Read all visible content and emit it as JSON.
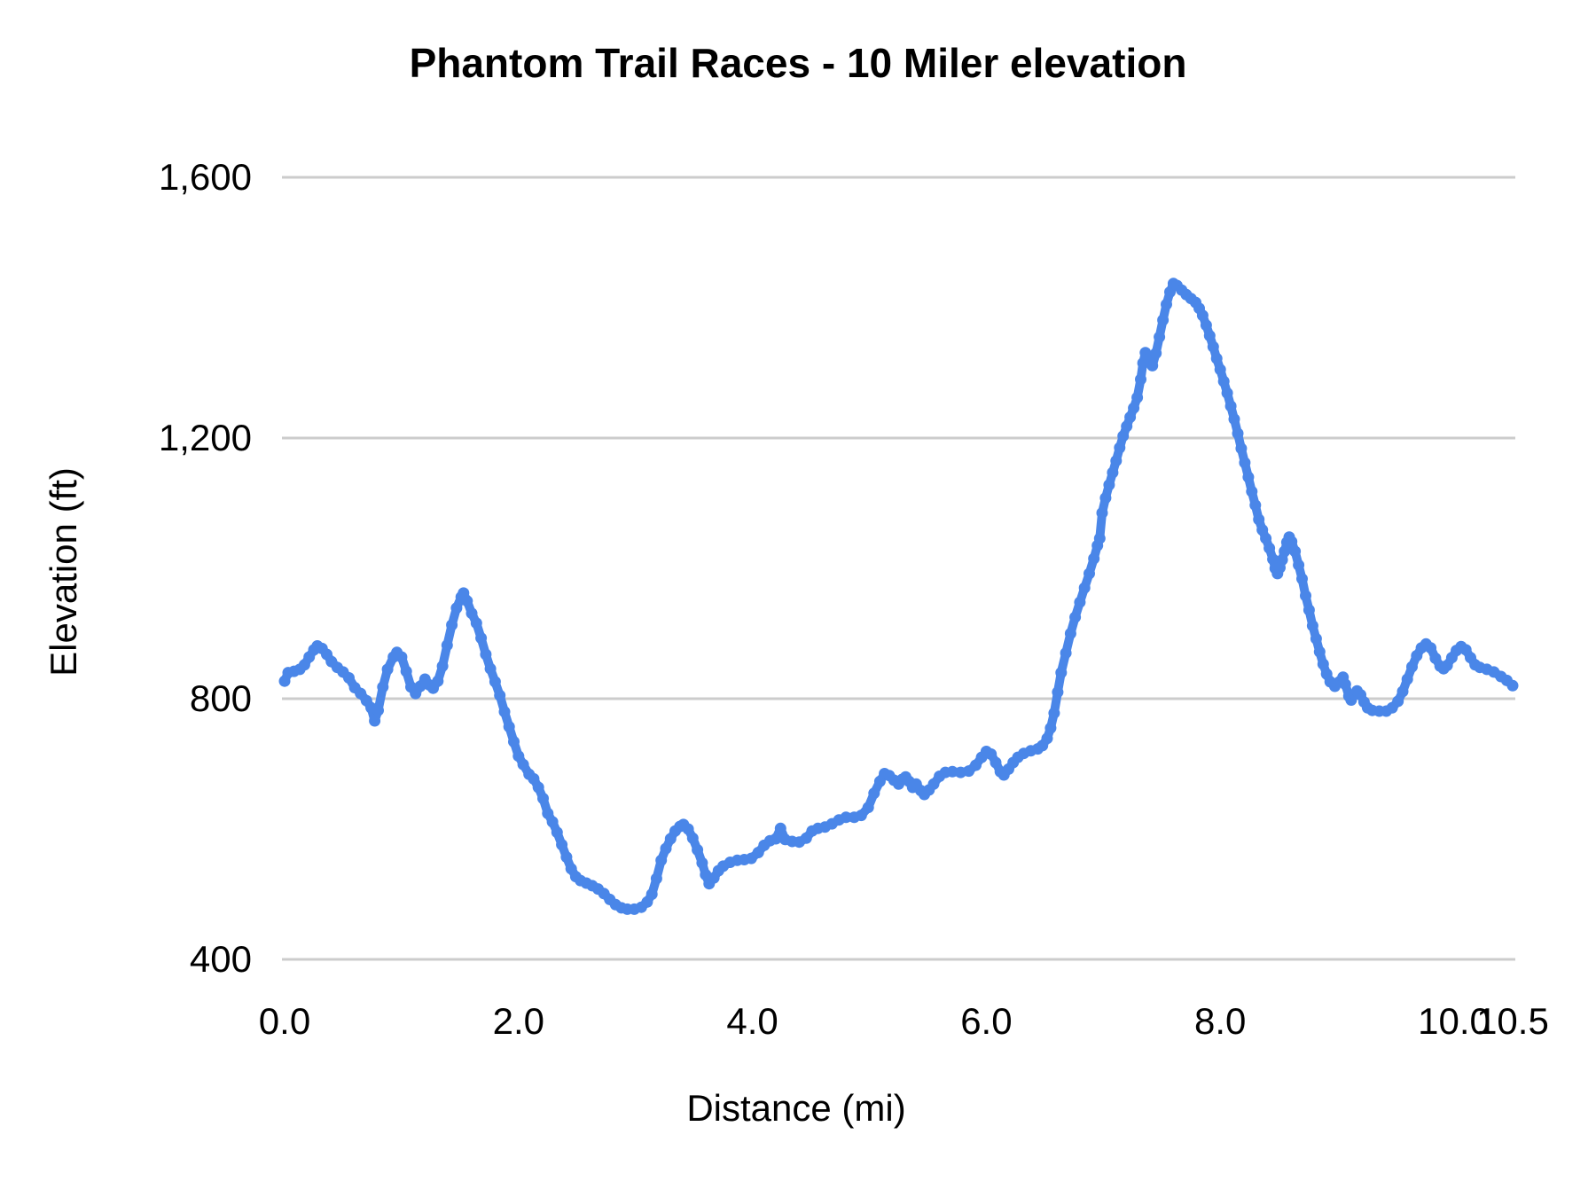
{
  "colors": {
    "line": "#4a86e8",
    "gridline": "#cccccc",
    "text": "#000000",
    "background": "#ffffff"
  },
  "chart_data": {
    "type": "line",
    "title": "Phantom Trail Races - 10 Miler elevation",
    "xlabel": "Distance (mi)",
    "ylabel": "Elevation (ft)",
    "legend": "none",
    "grid": "horizontal",
    "xlim": [
      0,
      10.53
    ],
    "ylim": [
      400,
      1600
    ],
    "x_ticks": [
      {
        "label": "0.0",
        "value": 0
      },
      {
        "label": "2.0",
        "value": 2
      },
      {
        "label": "4.0",
        "value": 4
      },
      {
        "label": "6.0",
        "value": 6
      },
      {
        "label": "8.0",
        "value": 8
      },
      {
        "label": "10.0",
        "value": 10
      },
      {
        "label": "10.5",
        "value": 10.5
      }
    ],
    "y_ticks": [
      {
        "label": "400",
        "value": 400
      },
      {
        "label": "800",
        "value": 800
      },
      {
        "label": "1,200",
        "value": 1200
      },
      {
        "label": "1,600",
        "value": 1600
      }
    ],
    "series": [
      {
        "name": "Elevation",
        "marker": "point",
        "points": [
          [
            0.0,
            827
          ],
          [
            0.03,
            840
          ],
          [
            0.08,
            842
          ],
          [
            0.13,
            845
          ],
          [
            0.17,
            852
          ],
          [
            0.21,
            864
          ],
          [
            0.25,
            875
          ],
          [
            0.28,
            881
          ],
          [
            0.32,
            877
          ],
          [
            0.36,
            868
          ],
          [
            0.4,
            857
          ],
          [
            0.45,
            848
          ],
          [
            0.5,
            841
          ],
          [
            0.55,
            832
          ],
          [
            0.6,
            817
          ],
          [
            0.65,
            808
          ],
          [
            0.7,
            797
          ],
          [
            0.74,
            786
          ],
          [
            0.77,
            766
          ],
          [
            0.8,
            782
          ],
          [
            0.84,
            818
          ],
          [
            0.88,
            845
          ],
          [
            0.93,
            864
          ],
          [
            0.96,
            871
          ],
          [
            1.0,
            864
          ],
          [
            1.04,
            842
          ],
          [
            1.08,
            818
          ],
          [
            1.12,
            808
          ],
          [
            1.16,
            819
          ],
          [
            1.2,
            830
          ],
          [
            1.24,
            821
          ],
          [
            1.27,
            816
          ],
          [
            1.31,
            827
          ],
          [
            1.35,
            850
          ],
          [
            1.39,
            882
          ],
          [
            1.43,
            913
          ],
          [
            1.47,
            939
          ],
          [
            1.51,
            956
          ],
          [
            1.53,
            962
          ],
          [
            1.56,
            950
          ],
          [
            1.6,
            931
          ],
          [
            1.64,
            916
          ],
          [
            1.68,
            893
          ],
          [
            1.72,
            868
          ],
          [
            1.76,
            846
          ],
          [
            1.8,
            826
          ],
          [
            1.84,
            805
          ],
          [
            1.88,
            780
          ],
          [
            1.92,
            757
          ],
          [
            1.96,
            734
          ],
          [
            2.0,
            712
          ],
          [
            2.04,
            699
          ],
          [
            2.09,
            684
          ],
          [
            2.13,
            677
          ],
          [
            2.17,
            664
          ],
          [
            2.21,
            647
          ],
          [
            2.25,
            624
          ],
          [
            2.29,
            611
          ],
          [
            2.33,
            595
          ],
          [
            2.37,
            576
          ],
          [
            2.41,
            557
          ],
          [
            2.45,
            539
          ],
          [
            2.49,
            527
          ],
          [
            2.53,
            521
          ],
          [
            2.58,
            517
          ],
          [
            2.63,
            513
          ],
          [
            2.68,
            508
          ],
          [
            2.73,
            501
          ],
          [
            2.78,
            492
          ],
          [
            2.83,
            484
          ],
          [
            2.88,
            479
          ],
          [
            2.93,
            477
          ],
          [
            2.99,
            477
          ],
          [
            3.05,
            480
          ],
          [
            3.1,
            488
          ],
          [
            3.14,
            500
          ],
          [
            3.18,
            524
          ],
          [
            3.22,
            552
          ],
          [
            3.26,
            570
          ],
          [
            3.3,
            585
          ],
          [
            3.34,
            597
          ],
          [
            3.38,
            604
          ],
          [
            3.41,
            607
          ],
          [
            3.45,
            600
          ],
          [
            3.49,
            586
          ],
          [
            3.53,
            568
          ],
          [
            3.57,
            548
          ],
          [
            3.6,
            530
          ],
          [
            3.63,
            516
          ],
          [
            3.67,
            525
          ],
          [
            3.71,
            536
          ],
          [
            3.75,
            543
          ],
          [
            3.81,
            549
          ],
          [
            3.87,
            552
          ],
          [
            3.93,
            553
          ],
          [
            3.99,
            555
          ],
          [
            4.05,
            564
          ],
          [
            4.1,
            575
          ],
          [
            4.15,
            582
          ],
          [
            4.2,
            585
          ],
          [
            4.24,
            601
          ],
          [
            4.28,
            584
          ],
          [
            4.34,
            581
          ],
          [
            4.4,
            580
          ],
          [
            4.46,
            586
          ],
          [
            4.51,
            597
          ],
          [
            4.56,
            601
          ],
          [
            4.62,
            603
          ],
          [
            4.68,
            608
          ],
          [
            4.74,
            614
          ],
          [
            4.8,
            618
          ],
          [
            4.87,
            618
          ],
          [
            4.93,
            621
          ],
          [
            4.99,
            633
          ],
          [
            5.04,
            655
          ],
          [
            5.09,
            673
          ],
          [
            5.13,
            685
          ],
          [
            5.17,
            682
          ],
          [
            5.21,
            675
          ],
          [
            5.25,
            669
          ],
          [
            5.28,
            676
          ],
          [
            5.31,
            680
          ],
          [
            5.34,
            673
          ],
          [
            5.37,
            664
          ],
          [
            5.4,
            669
          ],
          [
            5.44,
            659
          ],
          [
            5.47,
            653
          ],
          [
            5.51,
            660
          ],
          [
            5.55,
            669
          ],
          [
            5.6,
            681
          ],
          [
            5.65,
            687
          ],
          [
            5.71,
            688
          ],
          [
            5.78,
            687
          ],
          [
            5.85,
            689
          ],
          [
            5.91,
            698
          ],
          [
            5.96,
            710
          ],
          [
            6.0,
            719
          ],
          [
            6.04,
            715
          ],
          [
            6.08,
            702
          ],
          [
            6.12,
            688
          ],
          [
            6.15,
            683
          ],
          [
            6.19,
            692
          ],
          [
            6.23,
            702
          ],
          [
            6.27,
            710
          ],
          [
            6.32,
            716
          ],
          [
            6.38,
            720
          ],
          [
            6.44,
            723
          ],
          [
            6.48,
            728
          ],
          [
            6.52,
            739
          ],
          [
            6.55,
            755
          ],
          [
            6.58,
            778
          ],
          [
            6.61,
            810
          ],
          [
            6.64,
            840
          ],
          [
            6.68,
            870
          ],
          [
            6.72,
            900
          ],
          [
            6.76,
            925
          ],
          [
            6.8,
            948
          ],
          [
            6.84,
            970
          ],
          [
            6.88,
            992
          ],
          [
            6.92,
            1015
          ],
          [
            6.95,
            1035
          ],
          [
            6.97,
            1046
          ],
          [
            6.99,
            1085
          ],
          [
            7.02,
            1108
          ],
          [
            7.05,
            1128
          ],
          [
            7.08,
            1147
          ],
          [
            7.11,
            1165
          ],
          [
            7.14,
            1185
          ],
          [
            7.17,
            1203
          ],
          [
            7.2,
            1218
          ],
          [
            7.23,
            1232
          ],
          [
            7.26,
            1246
          ],
          [
            7.29,
            1262
          ],
          [
            7.32,
            1290
          ],
          [
            7.34,
            1315
          ],
          [
            7.36,
            1331
          ],
          [
            7.39,
            1322
          ],
          [
            7.42,
            1311
          ],
          [
            7.45,
            1330
          ],
          [
            7.48,
            1355
          ],
          [
            7.51,
            1381
          ],
          [
            7.54,
            1405
          ],
          [
            7.57,
            1424
          ],
          [
            7.6,
            1437
          ],
          [
            7.63,
            1434
          ],
          [
            7.67,
            1427
          ],
          [
            7.71,
            1420
          ],
          [
            7.75,
            1414
          ],
          [
            7.79,
            1408
          ],
          [
            7.82,
            1399
          ],
          [
            7.85,
            1388
          ],
          [
            7.88,
            1373
          ],
          [
            7.91,
            1357
          ],
          [
            7.94,
            1340
          ],
          [
            7.97,
            1322
          ],
          [
            8.0,
            1305
          ],
          [
            8.03,
            1287
          ],
          [
            8.06,
            1269
          ],
          [
            8.09,
            1249
          ],
          [
            8.12,
            1229
          ],
          [
            8.15,
            1207
          ],
          [
            8.18,
            1184
          ],
          [
            8.21,
            1162
          ],
          [
            8.24,
            1140
          ],
          [
            8.27,
            1118
          ],
          [
            8.3,
            1097
          ],
          [
            8.33,
            1075
          ],
          [
            8.36,
            1059
          ],
          [
            8.39,
            1046
          ],
          [
            8.42,
            1031
          ],
          [
            8.45,
            1014
          ],
          [
            8.47,
            1000
          ],
          [
            8.49,
            992
          ],
          [
            8.51,
            1001
          ],
          [
            8.53,
            1013
          ],
          [
            8.55,
            1026
          ],
          [
            8.57,
            1040
          ],
          [
            8.59,
            1048
          ],
          [
            8.61,
            1041
          ],
          [
            8.64,
            1026
          ],
          [
            8.67,
            1005
          ],
          [
            8.7,
            984
          ],
          [
            8.73,
            958
          ],
          [
            8.76,
            936
          ],
          [
            8.79,
            912
          ],
          [
            8.82,
            892
          ],
          [
            8.85,
            872
          ],
          [
            8.88,
            853
          ],
          [
            8.91,
            838
          ],
          [
            8.94,
            826
          ],
          [
            8.98,
            819
          ],
          [
            9.02,
            826
          ],
          [
            9.05,
            833
          ],
          [
            9.07,
            822
          ],
          [
            9.1,
            804
          ],
          [
            9.12,
            798
          ],
          [
            9.15,
            807
          ],
          [
            9.17,
            812
          ],
          [
            9.2,
            806
          ],
          [
            9.23,
            795
          ],
          [
            9.26,
            786
          ],
          [
            9.3,
            782
          ],
          [
            9.36,
            781
          ],
          [
            9.42,
            781
          ],
          [
            9.47,
            786
          ],
          [
            9.52,
            796
          ],
          [
            9.56,
            811
          ],
          [
            9.6,
            830
          ],
          [
            9.64,
            849
          ],
          [
            9.68,
            866
          ],
          [
            9.72,
            878
          ],
          [
            9.76,
            884
          ],
          [
            9.8,
            878
          ],
          [
            9.84,
            862
          ],
          [
            9.88,
            850
          ],
          [
            9.91,
            846
          ],
          [
            9.94,
            851
          ],
          [
            9.98,
            863
          ],
          [
            10.02,
            874
          ],
          [
            10.06,
            880
          ],
          [
            10.1,
            875
          ],
          [
            10.14,
            863
          ],
          [
            10.18,
            852
          ],
          [
            10.22,
            848
          ],
          [
            10.28,
            845
          ],
          [
            10.34,
            841
          ],
          [
            10.4,
            834
          ],
          [
            10.45,
            828
          ],
          [
            10.5,
            820
          ]
        ]
      }
    ]
  }
}
